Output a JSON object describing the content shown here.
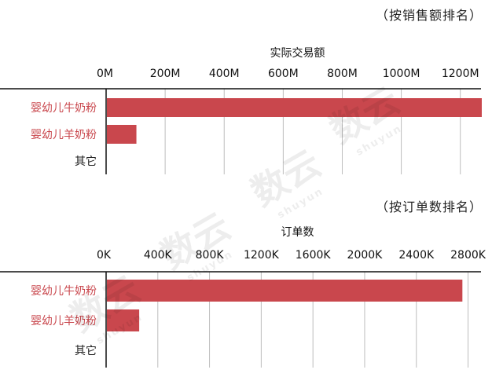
{
  "colors": {
    "bar": "#c9474d",
    "category_label": "#c9474d",
    "grid": "#bdbdbd"
  },
  "watermark": {
    "text": "数云",
    "sub": "shuyun"
  },
  "chart_data": [
    {
      "type": "bar",
      "orientation": "horizontal",
      "note": "（按销售额排名）",
      "title": "",
      "xlabel": "实际交易额",
      "ylabel": "",
      "categories": [
        "婴幼儿牛奶粉",
        "婴幼儿羊奶粉",
        "其它"
      ],
      "values": [
        1300,
        100,
        0
      ],
      "xlim": [
        0,
        1270
      ],
      "xticks": [
        0,
        200,
        400,
        600,
        800,
        1000,
        1200
      ],
      "tick_labels": [
        "0M",
        "200M",
        "400M",
        "600M",
        "800M",
        "1000M",
        "1200M"
      ],
      "grid": true,
      "x_axis_position": "top"
    },
    {
      "type": "bar",
      "orientation": "horizontal",
      "note": "（按订单数排名）",
      "title": "",
      "xlabel": "订单数",
      "ylabel": "",
      "categories": [
        "婴幼儿牛奶粉",
        "婴幼儿羊奶粉",
        "其它"
      ],
      "values": [
        2750,
        250,
        0
      ],
      "xlim": [
        0,
        2900
      ],
      "xticks": [
        0,
        400,
        800,
        1200,
        1600,
        2000,
        2400,
        2800
      ],
      "tick_labels": [
        "0K",
        "400K",
        "800K",
        "1200K",
        "1600K",
        "2000K",
        "2400K",
        "2800K"
      ],
      "grid": true,
      "x_axis_position": "top"
    }
  ]
}
